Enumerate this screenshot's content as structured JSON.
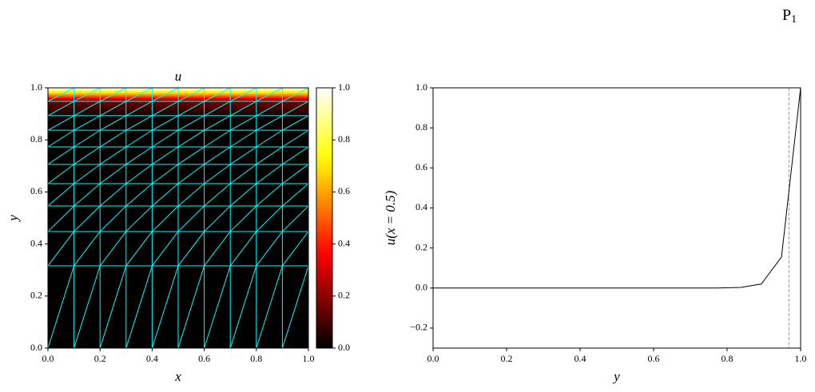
{
  "chart_data": [
    {
      "type": "heatmap-mesh",
      "title": "u",
      "xlabel": "x",
      "ylabel": "y",
      "xlim": [
        0,
        1
      ],
      "ylim": [
        0,
        1
      ],
      "xticks": [
        {
          "value": 0,
          "label": "0.0"
        },
        {
          "value": 0.2,
          "label": "0.2"
        },
        {
          "value": 0.4,
          "label": "0.4"
        },
        {
          "value": 0.6,
          "label": "0.6"
        },
        {
          "value": 0.8,
          "label": "0.8"
        },
        {
          "value": 1,
          "label": "1.0"
        }
      ],
      "yticks": [
        {
          "value": 0,
          "label": "0.0"
        },
        {
          "value": 0.2,
          "label": "0.2"
        },
        {
          "value": 0.4,
          "label": "0.4"
        },
        {
          "value": 0.6,
          "label": "0.6"
        },
        {
          "value": 0.8,
          "label": "0.8"
        },
        {
          "value": 1,
          "label": "1.0"
        }
      ],
      "mesh_x": [
        0,
        0.1,
        0.2,
        0.3,
        0.4,
        0.5,
        0.6,
        0.7,
        0.8,
        0.9,
        1
      ],
      "mesh_y": [
        0,
        0.316,
        0.448,
        0.546,
        0.632,
        0.706,
        0.773,
        0.837,
        0.893,
        0.948,
        1
      ],
      "row_values": [
        0,
        0,
        0,
        0,
        0,
        0,
        0,
        0.003,
        0.02,
        0.155,
        1
      ],
      "colormap": "hot",
      "mesh_color": "#00ffff",
      "clim": [
        0,
        1
      ],
      "colorbar_ticks": [
        {
          "value": 0,
          "label": "0.0"
        },
        {
          "value": 0.2,
          "label": "0.2"
        },
        {
          "value": 0.4,
          "label": "0.4"
        },
        {
          "value": 0.6,
          "label": "0.6"
        },
        {
          "value": 0.8,
          "label": "0.8"
        },
        {
          "value": 1,
          "label": "1.0"
        }
      ]
    },
    {
      "type": "line",
      "xlabel": "y",
      "ylabel": "u(x = 0.5)",
      "x": [
        0,
        0.316,
        0.448,
        0.546,
        0.632,
        0.706,
        0.773,
        0.837,
        0.893,
        0.948,
        1
      ],
      "values": [
        0,
        0,
        0,
        0,
        0,
        0,
        0,
        0.003,
        0.02,
        0.155,
        1
      ],
      "color": "#000000",
      "xlim": [
        0,
        1
      ],
      "ylim": [
        -0.3,
        1
      ],
      "xticks": [
        {
          "value": 0,
          "label": "0.0"
        },
        {
          "value": 0.2,
          "label": "0.2"
        },
        {
          "value": 0.4,
          "label": "0.4"
        },
        {
          "value": 0.6,
          "label": "0.6"
        },
        {
          "value": 0.8,
          "label": "0.8"
        },
        {
          "value": 1,
          "label": "1.0"
        }
      ],
      "yticks": [
        {
          "value": -0.2,
          "label": "−0.2"
        },
        {
          "value": 0,
          "label": "0.0"
        },
        {
          "value": 0.2,
          "label": "0.2"
        },
        {
          "value": 0.4,
          "label": "0.4"
        },
        {
          "value": 0.6,
          "label": "0.6"
        },
        {
          "value": 0.8,
          "label": "0.8"
        },
        {
          "value": 1,
          "label": "1.0"
        }
      ],
      "vline": 0.968,
      "vline_color": "#808080"
    }
  ],
  "corner_label": {
    "main": "P",
    "sub": "1"
  }
}
